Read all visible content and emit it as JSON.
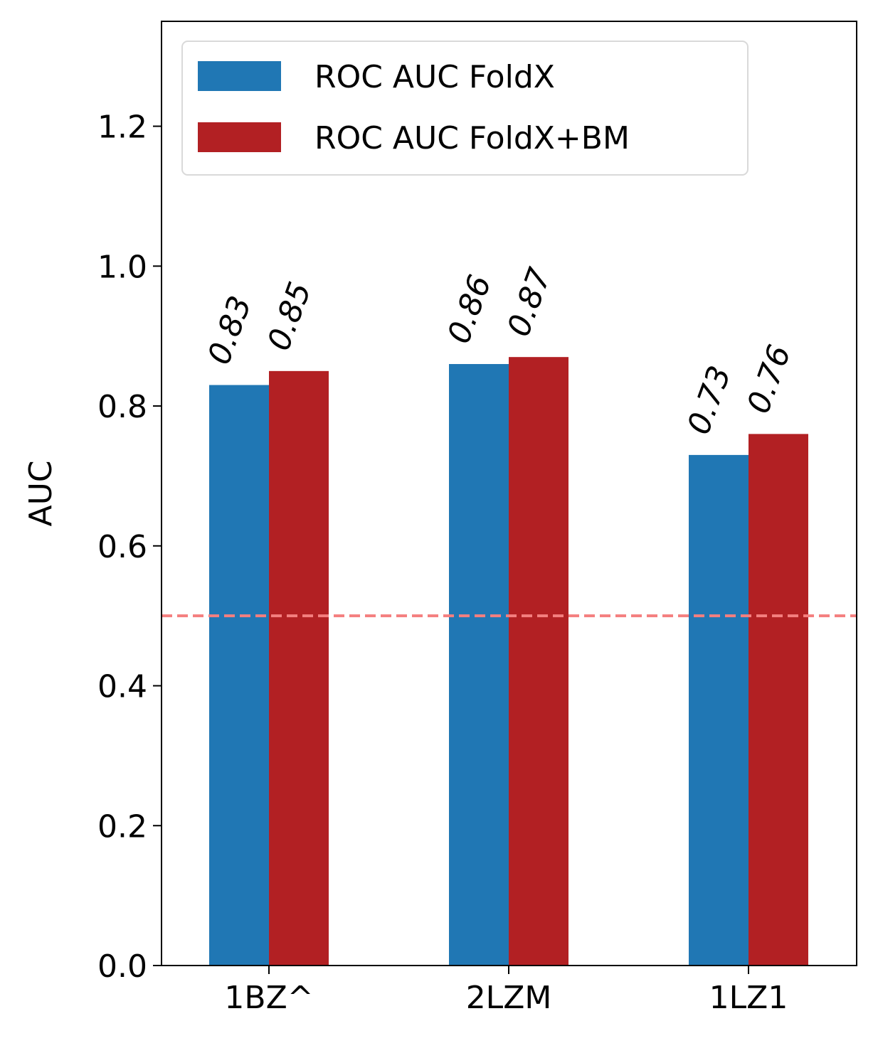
{
  "chart_data": {
    "type": "bar",
    "categories": [
      "1BZ^",
      "2LZM",
      "1LZ1"
    ],
    "series": [
      {
        "name": "ROC AUC FoldX",
        "values": [
          0.83,
          0.86,
          0.73
        ],
        "color": "#2077b4"
      },
      {
        "name": "ROC AUC FoldX+BM",
        "values": [
          0.85,
          0.87,
          0.76
        ],
        "color": "#b22023"
      }
    ],
    "data_labels": [
      [
        "0.83",
        "0.86",
        "0.73"
      ],
      [
        "0.85",
        "0.87",
        "0.76"
      ]
    ],
    "ylabel": "AUC",
    "xlabel": "",
    "title": "",
    "ylim": [
      0,
      1.35
    ],
    "yticks": [
      0.0,
      0.2,
      0.4,
      0.6,
      0.8,
      1.0,
      1.2
    ],
    "ytick_labels": [
      "0.0",
      "0.2",
      "0.4",
      "0.6",
      "0.8",
      "1.0",
      "1.2"
    ],
    "reference_line": {
      "y": 0.5,
      "style": "dashed",
      "color": "#f47f7f"
    },
    "legend": {
      "placement": "top-left"
    },
    "grid": false
  }
}
